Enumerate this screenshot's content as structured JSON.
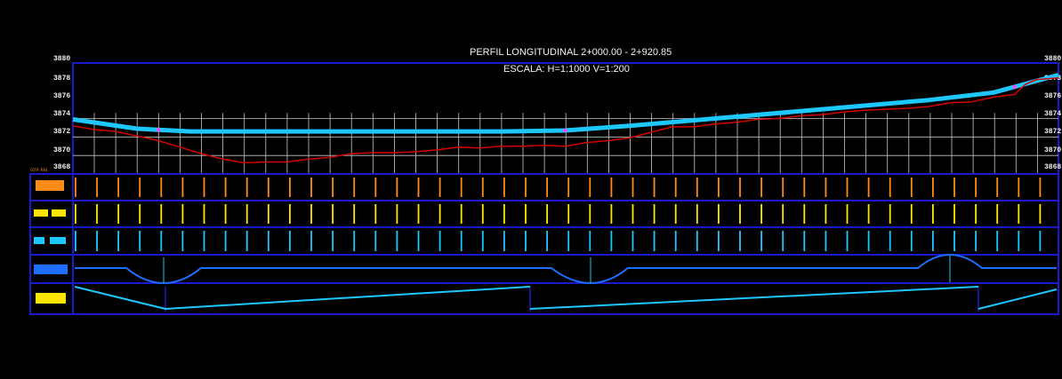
{
  "drawing": {
    "title": "PERFIL LONGITUDINAL  2+000.00 - 2+920.85",
    "scale": "ESCALA: H=1:1000  V=1:200",
    "corner_label_top": "3880",
    "corner_label_top_right": "3880",
    "colors": {
      "background": "#000000",
      "frame": "#1a1acc",
      "grid": "#c8c8c8",
      "design_line": "#1ec8ff",
      "terrain_line": "#d40000",
      "band_orange": "#ff8a1a",
      "band_yellow": "#ffe600",
      "band_cyan": "#1ec8ff",
      "band_blue": "#1e6fff",
      "vertex_marker": "#ff44ff"
    }
  },
  "elevation_labels_left": [
    "3878",
    "3876",
    "3874",
    "3872",
    "3870",
    "3868"
  ],
  "elevation_labels_right": [
    "3878",
    "3876",
    "3874",
    "3872",
    "3870",
    "3868"
  ],
  "legend_tag": "COTA RAS.",
  "chart_data": {
    "type": "line",
    "title": "PERFIL LONGITUDINAL  2+000.00 - 2+920.85",
    "subtitle": "ESCALA: H=1:1000  V=1:200",
    "xlim": [
      2000,
      2920.85
    ],
    "ylim": [
      3868,
      3880
    ],
    "grid": true,
    "series": [
      {
        "kind": "design",
        "points": [
          [
            2000,
            3873.9
          ],
          [
            2060,
            3872.9
          ],
          [
            2110,
            3872.6
          ],
          [
            2200,
            3872.6
          ],
          [
            2300,
            3872.6
          ],
          [
            2400,
            3872.6
          ],
          [
            2460,
            3872.7
          ],
          [
            2520,
            3873.2
          ],
          [
            2600,
            3874.0
          ],
          [
            2700,
            3875.0
          ],
          [
            2800,
            3876.0
          ],
          [
            2860,
            3876.8
          ],
          [
            2920.85,
            3878.7
          ]
        ]
      },
      {
        "kind": "terrain",
        "points": [
          [
            2000,
            3873.2
          ],
          [
            2020,
            3872.8
          ],
          [
            2040,
            3872.6
          ],
          [
            2060,
            3872.1
          ],
          [
            2080,
            3871.6
          ],
          [
            2100,
            3870.9
          ],
          [
            2120,
            3870.2
          ],
          [
            2140,
            3869.6
          ],
          [
            2160,
            3869.2
          ],
          [
            2180,
            3869.3
          ],
          [
            2200,
            3869.3
          ],
          [
            2220,
            3869.6
          ],
          [
            2240,
            3869.8
          ],
          [
            2260,
            3870.2
          ],
          [
            2280,
            3870.3
          ],
          [
            2300,
            3870.3
          ],
          [
            2320,
            3870.4
          ],
          [
            2340,
            3870.6
          ],
          [
            2360,
            3870.9
          ],
          [
            2380,
            3870.8
          ],
          [
            2400,
            3871.0
          ],
          [
            2420,
            3871.0
          ],
          [
            2440,
            3871.1
          ],
          [
            2460,
            3871.0
          ],
          [
            2480,
            3871.4
          ],
          [
            2500,
            3871.6
          ],
          [
            2520,
            3871.9
          ],
          [
            2540,
            3872.5
          ],
          [
            2560,
            3873.1
          ],
          [
            2580,
            3873.1
          ],
          [
            2600,
            3873.4
          ],
          [
            2620,
            3873.6
          ],
          [
            2640,
            3873.9
          ],
          [
            2660,
            3874.0
          ],
          [
            2680,
            3874.3
          ],
          [
            2700,
            3874.4
          ],
          [
            2720,
            3874.7
          ],
          [
            2740,
            3874.9
          ],
          [
            2760,
            3875.0
          ],
          [
            2780,
            3875.1
          ],
          [
            2800,
            3875.3
          ],
          [
            2820,
            3875.7
          ],
          [
            2840,
            3875.8
          ],
          [
            2860,
            3876.3
          ],
          [
            2880,
            3876.6
          ],
          [
            2890,
            3877.7
          ],
          [
            2900,
            3878.2
          ],
          [
            2920.85,
            3878.4
          ]
        ]
      }
    ],
    "vertex_markers": [
      2080,
      2460,
      2880
    ]
  }
}
